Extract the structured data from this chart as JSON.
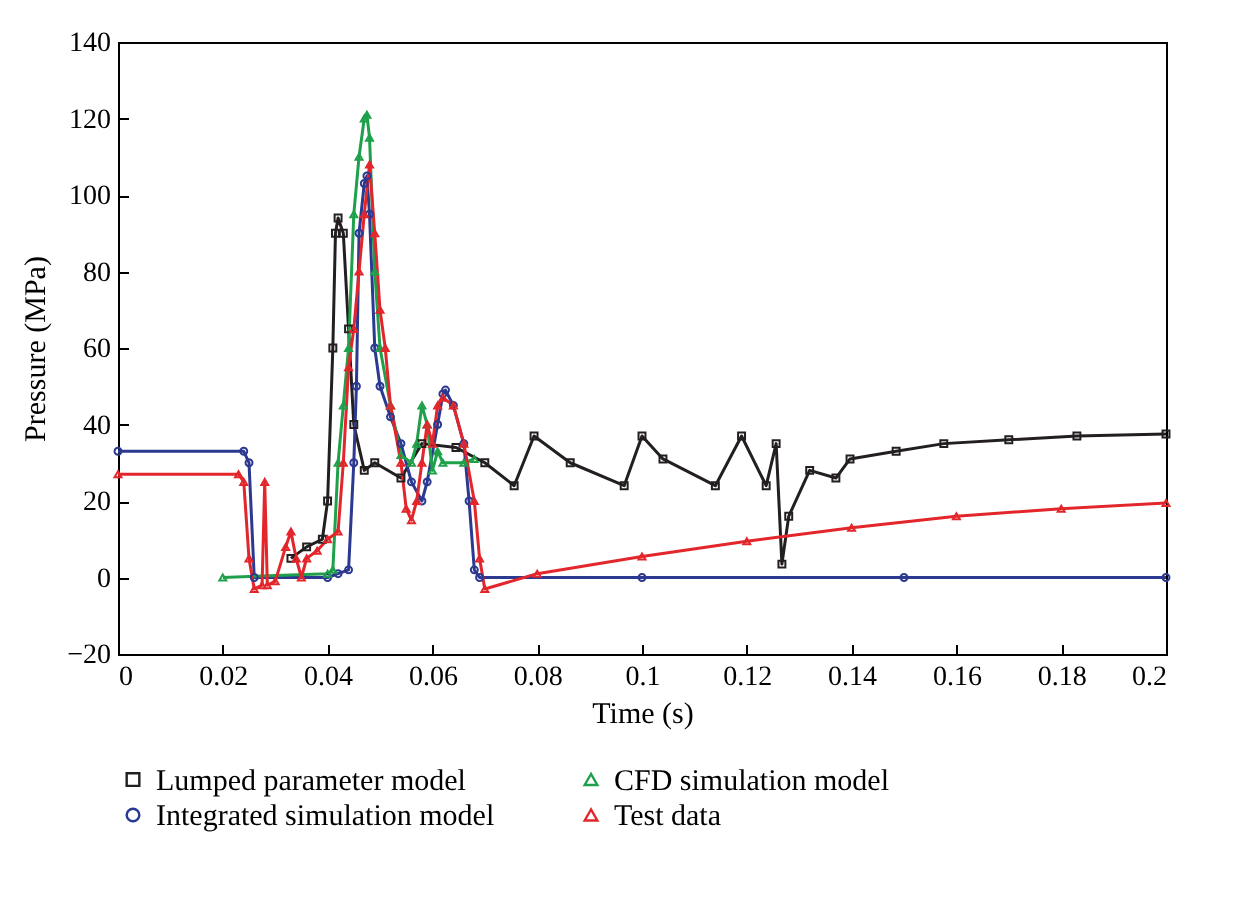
{
  "chart_data": {
    "type": "line",
    "xlabel": "Time (s)",
    "ylabel": "Pressure (MPa)",
    "xlim": [
      0,
      0.2
    ],
    "ylim": [
      -20,
      140
    ],
    "xticks": [
      0,
      0.02,
      0.04,
      0.06,
      0.08,
      0.1,
      0.12,
      0.14,
      0.16,
      0.18,
      0.2
    ],
    "yticks": [
      -20,
      0,
      20,
      40,
      60,
      80,
      100,
      120,
      140
    ],
    "grid": false,
    "legend": "bottom",
    "line_style": "solid",
    "series": [
      {
        "name": "Lumped parameter model",
        "color": "#231f20",
        "marker": "square",
        "x": [
          0.033,
          0.036,
          0.039,
          0.04,
          0.041,
          0.0415,
          0.042,
          0.043,
          0.044,
          0.045,
          0.047,
          0.049,
          0.054,
          0.058,
          0.0645,
          0.07,
          0.0756,
          0.0794,
          0.0863,
          0.0966,
          0.1,
          0.104,
          0.114,
          0.119,
          0.1237,
          0.1256,
          0.1267,
          0.128,
          0.132,
          0.137,
          0.1397,
          0.1485,
          0.1576,
          0.17,
          0.183,
          0.2
        ],
        "values": [
          5,
          8,
          10,
          20,
          60,
          90,
          94,
          90,
          65,
          40,
          28,
          30,
          26,
          35,
          34,
          30,
          24,
          37,
          30,
          24,
          37,
          31,
          24,
          37,
          24,
          35,
          3.5,
          16,
          28,
          26,
          31,
          33,
          35,
          36,
          37,
          37.5
        ]
      },
      {
        "name": "Integrated simulation model",
        "color": "#2b3990",
        "marker": "circle",
        "x": [
          0,
          0.024,
          0.025,
          0.026,
          0.04,
          0.042,
          0.044,
          0.045,
          0.0455,
          0.046,
          0.047,
          0.0475,
          0.048,
          0.049,
          0.05,
          0.052,
          0.054,
          0.056,
          0.058,
          0.059,
          0.061,
          0.062,
          0.0625,
          0.064,
          0.066,
          0.067,
          0.068,
          0.069,
          0.1,
          0.15,
          0.2
        ],
        "values": [
          33,
          33,
          30,
          0,
          0,
          1,
          2,
          30,
          50,
          90,
          103,
          105,
          95,
          60,
          50,
          42,
          35,
          25,
          20,
          25,
          40,
          48,
          49,
          45,
          35,
          20,
          2,
          0,
          0,
          0,
          0
        ]
      },
      {
        "name": "CFD simulation model",
        "color": "#1fa04a",
        "marker": "triangle",
        "x": [
          0.02,
          0.04,
          0.041,
          0.042,
          0.043,
          0.044,
          0.045,
          0.046,
          0.047,
          0.0475,
          0.048,
          0.049,
          0.05,
          0.052,
          0.054,
          0.056,
          0.057,
          0.058,
          0.059,
          0.06,
          0.061,
          0.062,
          0.066,
          0.068
        ],
        "values": [
          0,
          1,
          2,
          30,
          45,
          60,
          95,
          110,
          120,
          121,
          115,
          80,
          60,
          45,
          32,
          30,
          35,
          45,
          40,
          28,
          33,
          30,
          30,
          31
        ]
      },
      {
        "name": "Test data",
        "color": "#e3262b",
        "marker": "triangle",
        "x": [
          0,
          0.023,
          0.024,
          0.025,
          0.026,
          0.0275,
          0.028,
          0.0285,
          0.03,
          0.032,
          0.033,
          0.034,
          0.035,
          0.036,
          0.038,
          0.04,
          0.042,
          0.043,
          0.044,
          0.045,
          0.046,
          0.047,
          0.048,
          0.049,
          0.05,
          0.051,
          0.052,
          0.054,
          0.055,
          0.056,
          0.057,
          0.058,
          0.059,
          0.06,
          0.061,
          0.062,
          0.064,
          0.066,
          0.068,
          0.069,
          0.07,
          0.08,
          0.1,
          0.12,
          0.14,
          0.16,
          0.18,
          0.2
        ],
        "values": [
          27,
          27,
          25,
          5,
          -3,
          -2,
          25,
          -2,
          -1,
          8,
          12,
          5,
          0,
          5,
          7,
          10,
          12,
          30,
          55,
          65,
          80,
          95,
          108,
          90,
          70,
          60,
          45,
          30,
          18,
          15,
          20,
          30,
          40,
          35,
          45,
          47,
          45,
          35,
          20,
          5,
          -3,
          1,
          5.5,
          9.5,
          13,
          16,
          18,
          19.5
        ]
      }
    ]
  }
}
